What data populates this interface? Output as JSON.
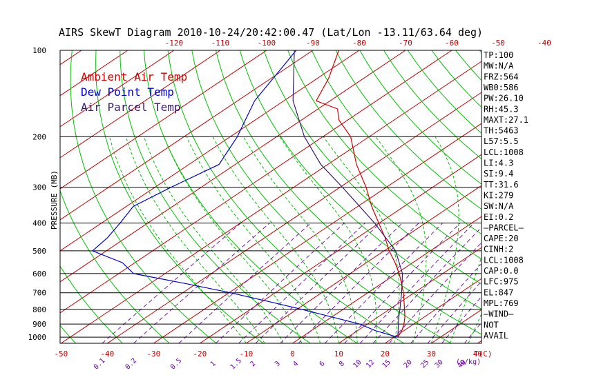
{
  "title": "AIRS SkewT Diagram 2010-10-24/20:42:00.47 (Lat/Lon -13.11/63.64 deg)",
  "colors": {
    "temperature": "#d00000",
    "dewpoint": "#0000d0",
    "parcel": "#3a1a6a",
    "isotherm": "#c00000",
    "dry_adiabat": "#00c000",
    "moist_adiabat": "#00c000",
    "mixing_ratio": "#6a00a8",
    "isobar": "#000000"
  },
  "chart_data": {
    "type": "line",
    "title": "AIRS SkewT Diagram 2010-10-24/20:42:00.47 (Lat/Lon -13.11/63.64 deg)",
    "ylabel": "PRESSURE (MB)",
    "xlabel_bottom_unit": "T(C)",
    "mixing_ratio_unit": "(g/kg)",
    "y_scale": "log",
    "ylim": [
      1050,
      100
    ],
    "xlim": [
      -52,
      44
    ],
    "grid": true,
    "legend_position": "top-left",
    "pressure_ticks": [
      100,
      200,
      300,
      400,
      500,
      600,
      700,
      800,
      900,
      1000
    ],
    "top_temperature_ticks": [
      "-120",
      "-110",
      "-100",
      "-90",
      "-80",
      "-70",
      "-60",
      "-50",
      "-40"
    ],
    "bottom_temperature_ticks": [
      "-50",
      "-40",
      "-30",
      "-20",
      "-10",
      "0",
      "10",
      "20",
      "30",
      "40"
    ],
    "mixing_ratio_ticks": [
      "0.1",
      "0.2",
      "0.5",
      "1",
      "1.5",
      "2",
      "3",
      "4",
      "6",
      "8",
      "10",
      "12",
      "15",
      "20",
      "25",
      "30",
      "40"
    ],
    "series": [
      {
        "name": "Ambient Air Temp",
        "pressure": [
          1000,
          950,
          900,
          850,
          800,
          750,
          700,
          650,
          600,
          550,
          500,
          450,
          400,
          350,
          300,
          250,
          200,
          175,
          160,
          150,
          125,
          100
        ],
        "temperature": [
          20.8,
          19.6,
          17.9,
          15.8,
          13.3,
          10.6,
          7.7,
          4.3,
          0.6,
          -3.8,
          -8.9,
          -14.0,
          -20.1,
          -27.0,
          -34.4,
          -43.8,
          -54.0,
          -61.9,
          -65.8,
          -73.0,
          -77.6,
          -84.4
        ]
      },
      {
        "name": "Dew Point Temp",
        "pressure": [
          1000,
          950,
          900,
          850,
          800,
          750,
          700,
          650,
          600,
          550,
          500,
          450,
          400,
          350,
          300,
          250,
          200,
          150,
          100
        ],
        "temperature": [
          20.8,
          14.0,
          8.3,
          0.0,
          -8.9,
          -18.8,
          -29.7,
          -42.4,
          -56.8,
          -62.7,
          -73.0,
          -74.0,
          -76.0,
          -78.5,
          -76.5,
          -73.5,
          -78.5,
          -86.3,
          -93.6
        ]
      },
      {
        "name": "Air Parcel Temp",
        "pressure": [
          1000,
          950,
          900,
          850,
          800,
          700,
          600,
          500,
          400,
          300,
          250,
          200,
          150,
          100
        ],
        "temperature": [
          20.8,
          18.8,
          16.7,
          14.5,
          12.3,
          7.3,
          1.3,
          -7.5,
          -21.0,
          -39.5,
          -51.5,
          -64.0,
          -78.0,
          -94.0
        ]
      }
    ],
    "stats": [
      "TP:100",
      "MW:N/A",
      "FRZ:564",
      "WB0:586",
      "PW:26.10",
      "RH:45.3",
      "MAXT:27.1",
      "TH:5463",
      "L57:5.5",
      "LCL:1008",
      "LI:4.3",
      "SI:9.4",
      "TT:31.6",
      "KI:279",
      "SW:N/A",
      "EI:0.2",
      "–PARCEL–",
      "CAPE:20",
      "CINH:2",
      "LCL:1008",
      "CAP:0.0",
      "LFC:975",
      "EL:847",
      "MPL:769",
      "–WIND–",
      "NOT",
      "AVAIL"
    ]
  }
}
